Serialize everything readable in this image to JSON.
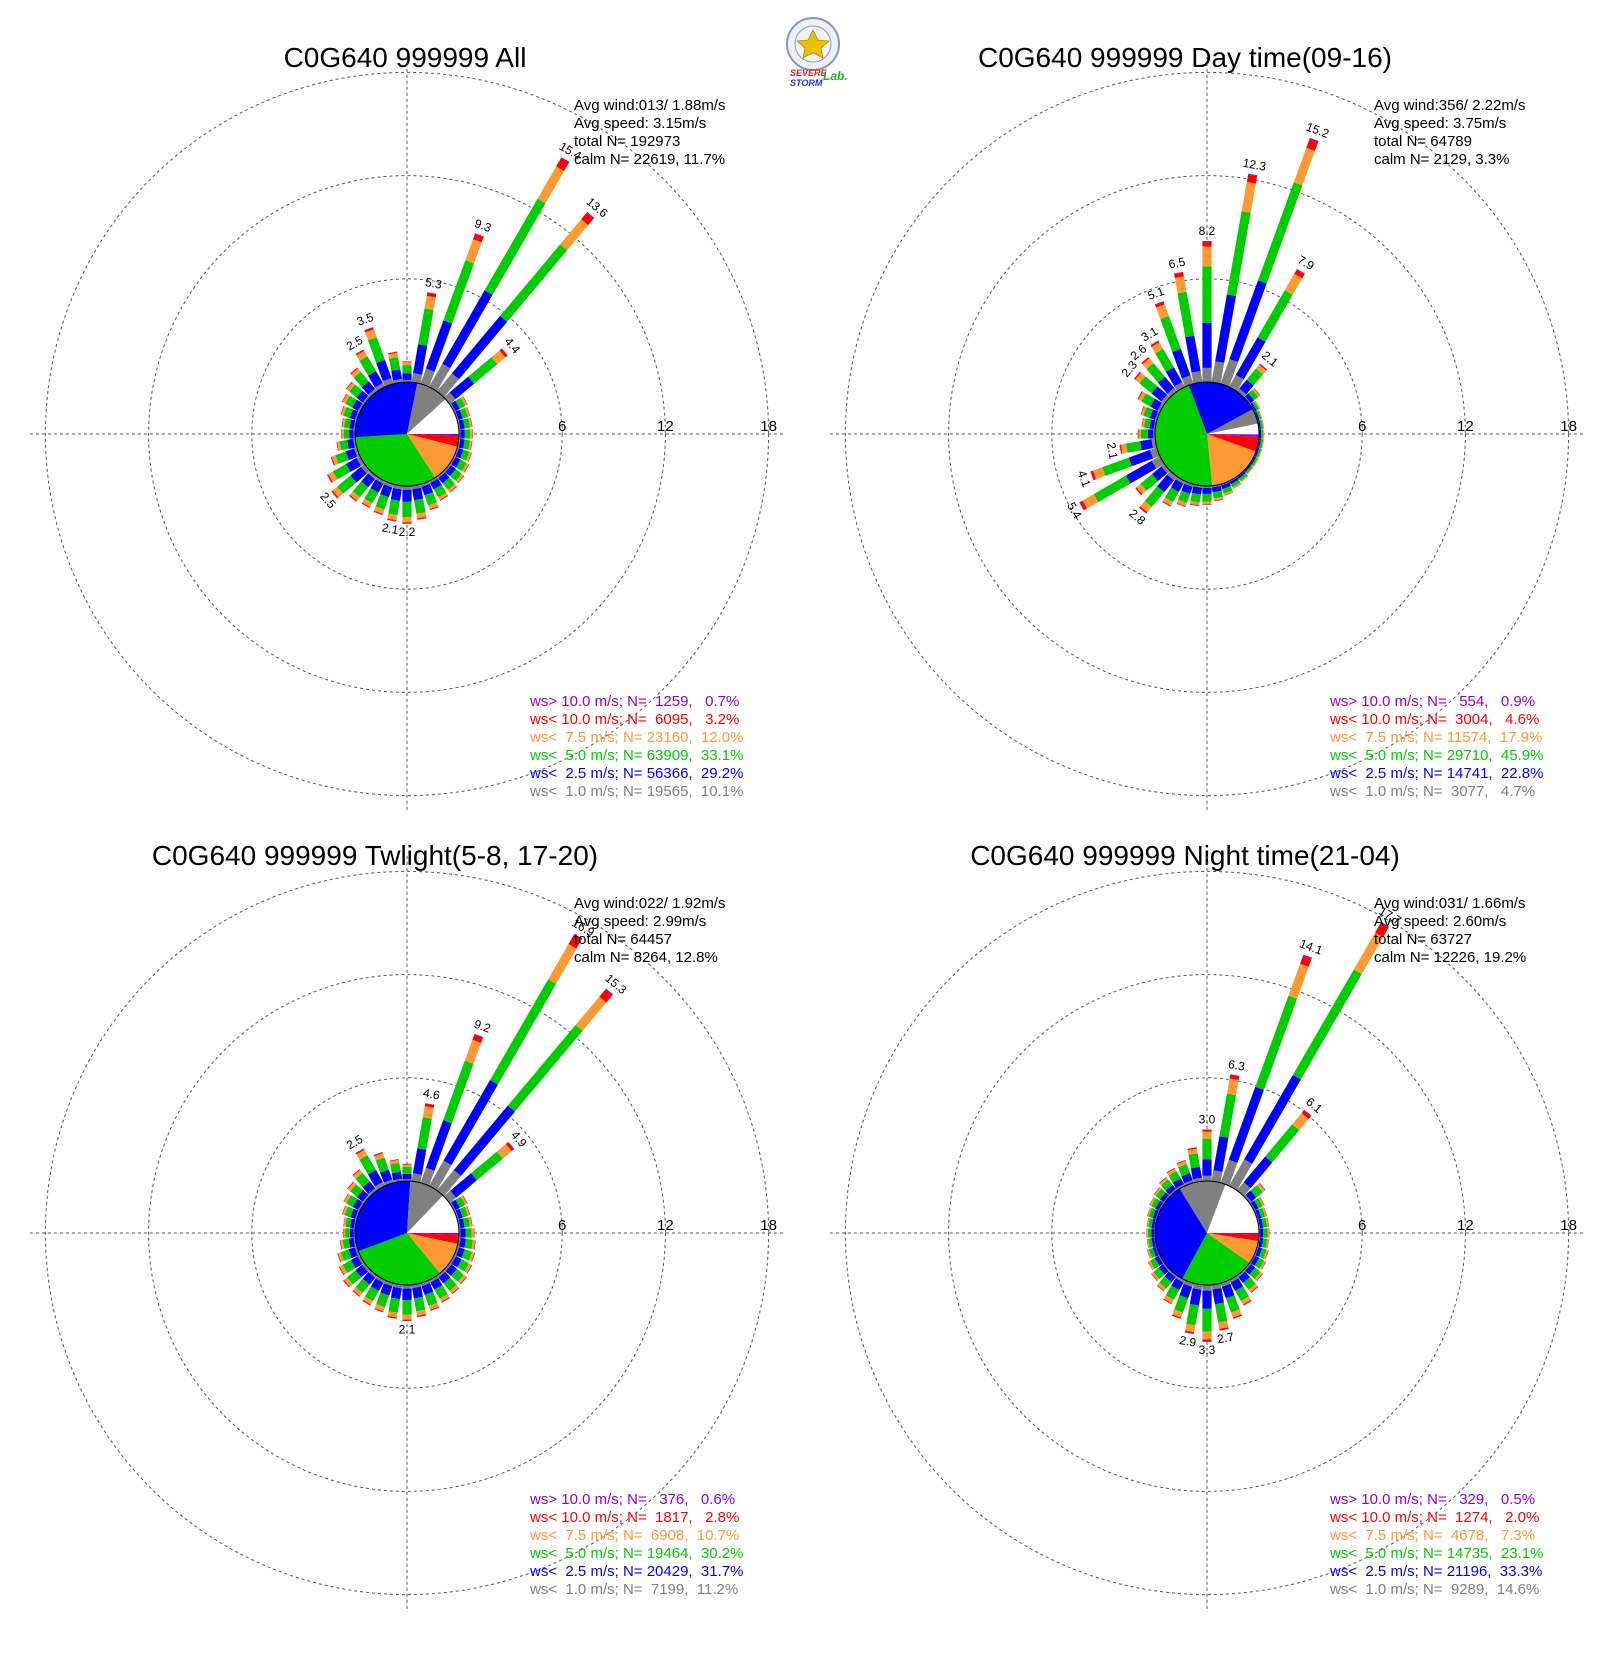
{
  "logo": {
    "lines": [
      "SEVERE",
      "STORM",
      "Lab."
    ],
    "colors": {
      "severe": "#dd2222",
      "storm": "#2233cc",
      "lab": "#22aa22",
      "seal": "#8899bb"
    }
  },
  "colors": {
    "gt10": "#9400D3",
    "lt10": "#FF0000",
    "lt75": "#FF9933",
    "lt5": "#00CC00",
    "lt25": "#0000FF",
    "lt1": "#808080",
    "calm": "#ffffff"
  },
  "legend_labels": [
    "ws> 10.0 m/s; N=",
    "ws< 10.0 m/s; N=",
    "ws<  7.5 m/s; N=",
    "ws<  5.0 m/s; N=",
    "ws<  2.5 m/s; N=",
    "ws<  1.0 m/s; N="
  ],
  "chart_data": [
    {
      "type": "wind-rose",
      "title": "C0G640 999999 All",
      "stats": [
        "Avg wind:013/ 1.88m/s",
        "Avg speed: 3.15m/s",
        "total N=      192973",
        "calm N=  22619,  11.7%"
      ],
      "rings": [
        6,
        12,
        18
      ],
      "ring_labels": [
        "6",
        "12",
        "18"
      ],
      "legend": [
        {
          "n": "1259",
          "pct": "0.7%"
        },
        {
          "n": "6095",
          "pct": "3.2%"
        },
        {
          "n": "23160",
          "pct": "12.0%"
        },
        {
          "n": "63909",
          "pct": "33.1%"
        },
        {
          "n": "56366",
          "pct": "29.2%"
        },
        {
          "n": "19565",
          "pct": "10.1%"
        }
      ],
      "calm_pct": 11.7,
      "pie_pct": [
        0.7,
        3.2,
        12.0,
        33.1,
        29.2,
        10.1
      ],
      "sectors": [
        {
          "dir": 0,
          "total": 1.2
        },
        {
          "dir": 10,
          "total": 5.3,
          "label": "5.3"
        },
        {
          "dir": 20,
          "total": 9.3,
          "label": "9.3"
        },
        {
          "dir": 30,
          "total": 15.4,
          "label": "15.4"
        },
        {
          "dir": 40,
          "total": 13.6,
          "label": "13.6"
        },
        {
          "dir": 50,
          "total": 4.4,
          "label": "4.4"
        },
        {
          "dir": 60,
          "total": 0.9
        },
        {
          "dir": 70,
          "total": 0.8
        },
        {
          "dir": 80,
          "total": 0.8
        },
        {
          "dir": 90,
          "total": 0.8
        },
        {
          "dir": 100,
          "total": 0.8
        },
        {
          "dir": 110,
          "total": 0.9
        },
        {
          "dir": 120,
          "total": 1.0
        },
        {
          "dir": 130,
          "total": 1.1
        },
        {
          "dir": 140,
          "total": 1.2
        },
        {
          "dir": 150,
          "total": 1.3
        },
        {
          "dir": 160,
          "total": 1.6
        },
        {
          "dir": 170,
          "total": 2.0
        },
        {
          "dir": 180,
          "total": 2.2,
          "label": "2.2"
        },
        {
          "dir": 190,
          "total": 2.1,
          "label": "2.1"
        },
        {
          "dir": 200,
          "total": 1.9
        },
        {
          "dir": 210,
          "total": 1.8
        },
        {
          "dir": 220,
          "total": 1.9
        },
        {
          "dir": 230,
          "total": 2.5,
          "label": "2.5"
        },
        {
          "dir": 240,
          "total": 2.2
        },
        {
          "dir": 250,
          "total": 1.6
        },
        {
          "dir": 260,
          "total": 1.1
        },
        {
          "dir": 270,
          "total": 0.8
        },
        {
          "dir": 280,
          "total": 0.8
        },
        {
          "dir": 290,
          "total": 1.0
        },
        {
          "dir": 300,
          "total": 1.2
        },
        {
          "dir": 310,
          "total": 1.4
        },
        {
          "dir": 320,
          "total": 1.8
        },
        {
          "dir": 330,
          "total": 2.5,
          "label": "2.5"
        },
        {
          "dir": 340,
          "total": 3.5,
          "label": "3.5"
        },
        {
          "dir": 350,
          "total": 1.8
        }
      ]
    },
    {
      "type": "wind-rose",
      "title": "C0G640 999999 Day time(09-16)",
      "stats": [
        "Avg wind:356/ 2.22m/s",
        "Avg speed: 3.75m/s",
        "total N=       64789",
        "calm N=   2129,   3.3%"
      ],
      "rings": [
        6,
        12,
        18
      ],
      "ring_labels": [
        "6",
        "12",
        "18"
      ],
      "legend": [
        {
          "n": "554",
          "pct": "0.9%"
        },
        {
          "n": "3004",
          "pct": "4.6%"
        },
        {
          "n": "11574",
          "pct": "17.9%"
        },
        {
          "n": "29710",
          "pct": "45.9%"
        },
        {
          "n": "14741",
          "pct": "22.8%"
        },
        {
          "n": "3077",
          "pct": "4.7%"
        }
      ],
      "calm_pct": 3.3,
      "pie_pct": [
        0.9,
        4.6,
        17.9,
        45.9,
        22.8,
        4.7
      ],
      "sectors": [
        {
          "dir": 0,
          "total": 8.2,
          "label": "8.2"
        },
        {
          "dir": 10,
          "total": 12.3,
          "label": "12.3"
        },
        {
          "dir": 20,
          "total": 15.2,
          "label": "15.2"
        },
        {
          "dir": 30,
          "total": 7.9,
          "label": "7.9"
        },
        {
          "dir": 40,
          "total": 2.1,
          "label": "2.1"
        },
        {
          "dir": 50,
          "total": 0.8
        },
        {
          "dir": 60,
          "total": 0.4
        },
        {
          "dir": 70,
          "total": 0.3
        },
        {
          "dir": 80,
          "total": 0.3
        },
        {
          "dir": 90,
          "total": 0.3
        },
        {
          "dir": 100,
          "total": 0.3
        },
        {
          "dir": 110,
          "total": 0.3
        },
        {
          "dir": 120,
          "total": 0.3
        },
        {
          "dir": 130,
          "total": 0.3
        },
        {
          "dir": 140,
          "total": 0.4
        },
        {
          "dir": 150,
          "total": 0.5
        },
        {
          "dir": 160,
          "total": 0.7
        },
        {
          "dir": 170,
          "total": 0.9
        },
        {
          "dir": 180,
          "total": 1.1
        },
        {
          "dir": 190,
          "total": 1.2
        },
        {
          "dir": 200,
          "total": 1.4
        },
        {
          "dir": 210,
          "total": 1.7
        },
        {
          "dir": 220,
          "total": 2.8,
          "label": "2.8"
        },
        {
          "dir": 230,
          "total": 2.2
        },
        {
          "dir": 240,
          "total": 5.4,
          "label": "5.4"
        },
        {
          "dir": 250,
          "total": 4.1,
          "label": "4.1"
        },
        {
          "dir": 260,
          "total": 2.1,
          "label": "2.1"
        },
        {
          "dir": 270,
          "total": 1.0
        },
        {
          "dir": 280,
          "total": 0.8
        },
        {
          "dir": 290,
          "total": 1.0
        },
        {
          "dir": 300,
          "total": 1.5
        },
        {
          "dir": 310,
          "total": 2.3,
          "label": "2.3"
        },
        {
          "dir": 320,
          "total": 2.6,
          "label": "2.6"
        },
        {
          "dir": 330,
          "total": 3.1,
          "label": "3.1"
        },
        {
          "dir": 340,
          "total": 5.1,
          "label": "5.1"
        },
        {
          "dir": 350,
          "total": 6.5,
          "label": "6.5"
        }
      ]
    },
    {
      "type": "wind-rose",
      "title": "C0G640 999999 Twlight(5-8, 17-20)",
      "stats": [
        "Avg wind:022/ 1.92m/s",
        "Avg speed: 2.99m/s",
        "total N=       64457",
        "calm N=   8264,  12.8%"
      ],
      "rings": [
        6,
        12,
        18
      ],
      "ring_labels": [
        "6",
        "12",
        "18"
      ],
      "legend": [
        {
          "n": "376",
          "pct": "0.6%"
        },
        {
          "n": "1817",
          "pct": "2.8%"
        },
        {
          "n": "6908",
          "pct": "10.7%"
        },
        {
          "n": "19464",
          "pct": "30.2%"
        },
        {
          "n": "20429",
          "pct": "31.7%"
        },
        {
          "n": "7199",
          "pct": "11.2%"
        }
      ],
      "calm_pct": 12.8,
      "pie_pct": [
        0.6,
        2.8,
        10.7,
        30.2,
        31.7,
        11.2
      ],
      "sectors": [
        {
          "dir": 0,
          "total": 1.0
        },
        {
          "dir": 10,
          "total": 4.6,
          "label": "4.6"
        },
        {
          "dir": 20,
          "total": 9.2,
          "label": "9.2"
        },
        {
          "dir": 30,
          "total": 16.9,
          "label": "16.9"
        },
        {
          "dir": 40,
          "total": 15.3,
          "label": "15.3"
        },
        {
          "dir": 50,
          "total": 4.9,
          "label": "4.9"
        },
        {
          "dir": 60,
          "total": 0.9
        },
        {
          "dir": 70,
          "total": 0.8
        },
        {
          "dir": 80,
          "total": 0.8
        },
        {
          "dir": 90,
          "total": 0.9
        },
        {
          "dir": 100,
          "total": 1.0
        },
        {
          "dir": 110,
          "total": 1.1
        },
        {
          "dir": 120,
          "total": 1.2
        },
        {
          "dir": 130,
          "total": 1.3
        },
        {
          "dir": 140,
          "total": 1.4
        },
        {
          "dir": 150,
          "total": 1.5
        },
        {
          "dir": 160,
          "total": 1.7
        },
        {
          "dir": 170,
          "total": 1.9
        },
        {
          "dir": 180,
          "total": 2.1,
          "label": "2.1"
        },
        {
          "dir": 190,
          "total": 2.0
        },
        {
          "dir": 200,
          "total": 1.8
        },
        {
          "dir": 210,
          "total": 1.7
        },
        {
          "dir": 220,
          "total": 1.6
        },
        {
          "dir": 230,
          "total": 1.6
        },
        {
          "dir": 240,
          "total": 1.4
        },
        {
          "dir": 250,
          "total": 1.2
        },
        {
          "dir": 260,
          "total": 0.9
        },
        {
          "dir": 270,
          "total": 0.7
        },
        {
          "dir": 280,
          "total": 0.7
        },
        {
          "dir": 290,
          "total": 0.9
        },
        {
          "dir": 300,
          "total": 1.1
        },
        {
          "dir": 310,
          "total": 1.3
        },
        {
          "dir": 320,
          "total": 1.6
        },
        {
          "dir": 330,
          "total": 2.5,
          "label": "2.5"
        },
        {
          "dir": 340,
          "total": 1.9
        },
        {
          "dir": 350,
          "total": 1.3
        }
      ]
    },
    {
      "type": "wind-rose",
      "title": "C0G640 999999 Night time(21-04)",
      "stats": [
        "Avg wind:031/ 1.66m/s",
        "Avg speed: 2.60m/s",
        "total N=       63727",
        "calm N=  12226,  19.2%"
      ],
      "rings": [
        6,
        12,
        18
      ],
      "ring_labels": [
        "6",
        "12",
        "18"
      ],
      "legend": [
        {
          "n": "329",
          "pct": "0.5%"
        },
        {
          "n": "1274",
          "pct": "2.0%"
        },
        {
          "n": "4678",
          "pct": "7.3%"
        },
        {
          "n": "14735",
          "pct": "23.1%"
        },
        {
          "n": "21196",
          "pct": "33.3%"
        },
        {
          "n": "9289",
          "pct": "14.6%"
        }
      ],
      "calm_pct": 19.2,
      "pie_pct": [
        0.5,
        2.0,
        7.3,
        23.1,
        33.3,
        14.6
      ],
      "sectors": [
        {
          "dir": 0,
          "total": 3.0,
          "label": "3.0"
        },
        {
          "dir": 10,
          "total": 6.3,
          "label": "6.3"
        },
        {
          "dir": 20,
          "total": 14.1,
          "label": "14.1"
        },
        {
          "dir": 30,
          "total": 17.7,
          "label": "17.7"
        },
        {
          "dir": 40,
          "total": 6.1,
          "label": "6.1"
        },
        {
          "dir": 50,
          "total": 1.2
        },
        {
          "dir": 60,
          "total": 0.7
        },
        {
          "dir": 70,
          "total": 0.6
        },
        {
          "dir": 80,
          "total": 0.6
        },
        {
          "dir": 90,
          "total": 0.6
        },
        {
          "dir": 100,
          "total": 0.6
        },
        {
          "dir": 110,
          "total": 0.7
        },
        {
          "dir": 120,
          "total": 0.8
        },
        {
          "dir": 130,
          "total": 1.0
        },
        {
          "dir": 140,
          "total": 1.3
        },
        {
          "dir": 150,
          "total": 1.7
        },
        {
          "dir": 160,
          "total": 2.2
        },
        {
          "dir": 170,
          "total": 2.7,
          "label": "2.7"
        },
        {
          "dir": 180,
          "total": 3.3,
          "label": "3.3"
        },
        {
          "dir": 190,
          "total": 2.9,
          "label": "2.9"
        },
        {
          "dir": 200,
          "total": 2.2
        },
        {
          "dir": 210,
          "total": 1.6
        },
        {
          "dir": 220,
          "total": 1.2
        },
        {
          "dir": 230,
          "total": 1.0
        },
        {
          "dir": 240,
          "total": 0.8
        },
        {
          "dir": 250,
          "total": 0.6
        },
        {
          "dir": 260,
          "total": 0.5
        },
        {
          "dir": 270,
          "total": 0.5
        },
        {
          "dir": 280,
          "total": 0.5
        },
        {
          "dir": 290,
          "total": 0.6
        },
        {
          "dir": 300,
          "total": 0.7
        },
        {
          "dir": 310,
          "total": 0.8
        },
        {
          "dir": 320,
          "total": 1.0
        },
        {
          "dir": 330,
          "total": 1.2
        },
        {
          "dir": 340,
          "total": 1.4
        },
        {
          "dir": 350,
          "total": 2.0
        }
      ]
    }
  ]
}
